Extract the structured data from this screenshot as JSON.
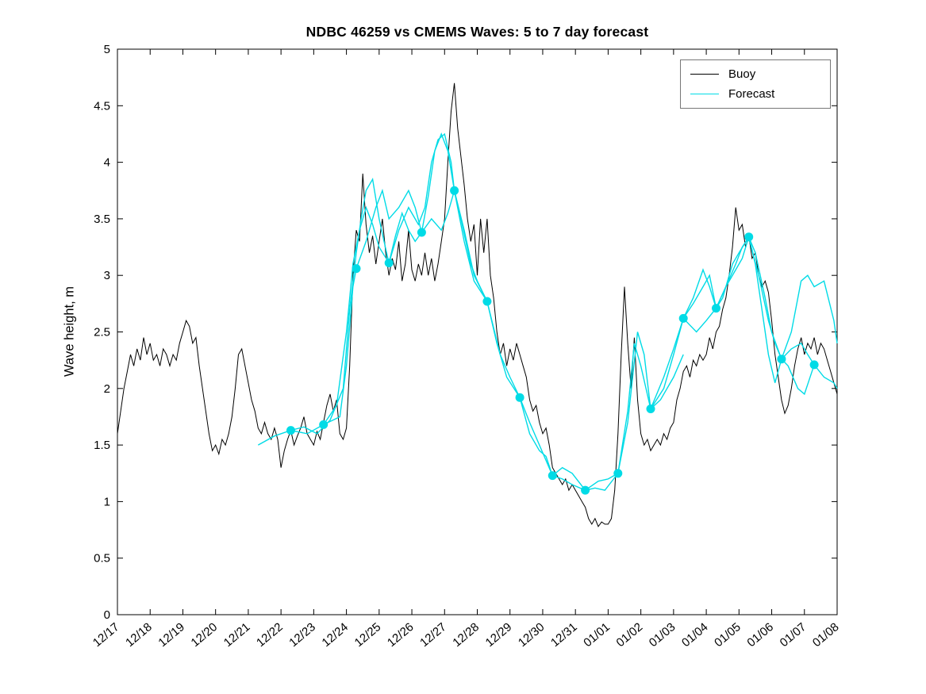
{
  "figure": {
    "background": "#ffffff"
  },
  "chart_data": {
    "type": "line",
    "title": "NDBC 46259 vs CMEMS Waves: 5 to 7 day forecast",
    "xlabel": "",
    "ylabel": "Wave height, m",
    "xlim": [
      0,
      22
    ],
    "ylim": [
      0,
      5
    ],
    "grid": false,
    "x_ticks": [
      "12/17",
      "12/18",
      "12/19",
      "12/20",
      "12/21",
      "12/22",
      "12/23",
      "12/24",
      "12/25",
      "12/26",
      "12/27",
      "12/28",
      "12/29",
      "12/30",
      "12/31",
      "01/01",
      "01/02",
      "01/03",
      "01/04",
      "01/05",
      "01/06",
      "01/07",
      "01/08"
    ],
    "y_ticks": [
      0,
      0.5,
      1,
      1.5,
      2,
      2.5,
      3,
      3.5,
      4,
      4.5,
      5
    ],
    "legend": {
      "position": "top-right",
      "entries": [
        "Buoy",
        "Forecast"
      ]
    },
    "series": [
      {
        "name": "Buoy",
        "color": "#000000",
        "style": "noisy-line",
        "x_start": 0,
        "dx": 0.1,
        "values": [
          1.6,
          1.8,
          2.0,
          2.15,
          2.3,
          2.2,
          2.35,
          2.25,
          2.45,
          2.3,
          2.4,
          2.25,
          2.3,
          2.2,
          2.35,
          2.3,
          2.2,
          2.3,
          2.25,
          2.4,
          2.5,
          2.6,
          2.55,
          2.4,
          2.45,
          2.2,
          2.0,
          1.8,
          1.6,
          1.45,
          1.5,
          1.42,
          1.55,
          1.5,
          1.6,
          1.75,
          2.0,
          2.3,
          2.35,
          2.2,
          2.05,
          1.9,
          1.8,
          1.65,
          1.6,
          1.7,
          1.6,
          1.55,
          1.65,
          1.55,
          1.3,
          1.45,
          1.55,
          1.63,
          1.5,
          1.58,
          1.65,
          1.75,
          1.6,
          1.55,
          1.5,
          1.62,
          1.55,
          1.7,
          1.85,
          1.95,
          1.8,
          1.9,
          1.6,
          1.55,
          1.65,
          2.2,
          3.0,
          3.4,
          3.3,
          3.9,
          3.45,
          3.2,
          3.35,
          3.1,
          3.3,
          3.5,
          3.2,
          3.0,
          3.15,
          3.05,
          3.3,
          2.95,
          3.1,
          3.4,
          3.05,
          2.95,
          3.1,
          3.0,
          3.2,
          3.0,
          3.15,
          2.95,
          3.1,
          3.3,
          3.5,
          4.0,
          4.45,
          4.7,
          4.3,
          4.05,
          3.8,
          3.5,
          3.3,
          3.45,
          3.0,
          3.5,
          3.2,
          3.5,
          3.0,
          2.8,
          2.5,
          2.3,
          2.4,
          2.2,
          2.35,
          2.25,
          2.4,
          2.3,
          2.2,
          2.1,
          1.9,
          1.8,
          1.85,
          1.7,
          1.6,
          1.65,
          1.5,
          1.3,
          1.25,
          1.2,
          1.15,
          1.2,
          1.1,
          1.15,
          1.1,
          1.05,
          1.0,
          0.95,
          0.85,
          0.8,
          0.85,
          0.78,
          0.82,
          0.8,
          0.8,
          0.85,
          1.1,
          1.6,
          2.3,
          2.9,
          2.4,
          2.0,
          2.45,
          1.9,
          1.6,
          1.5,
          1.55,
          1.45,
          1.5,
          1.55,
          1.5,
          1.6,
          1.55,
          1.65,
          1.7,
          1.9,
          2.0,
          2.15,
          2.2,
          2.1,
          2.25,
          2.2,
          2.3,
          2.25,
          2.3,
          2.45,
          2.35,
          2.5,
          2.55,
          2.7,
          2.8,
          3.0,
          3.25,
          3.6,
          3.4,
          3.45,
          3.25,
          3.35,
          3.15,
          3.2,
          3.0,
          2.9,
          2.95,
          2.85,
          2.6,
          2.3,
          2.1,
          1.9,
          1.78,
          1.85,
          2.0,
          2.2,
          2.35,
          2.45,
          2.3,
          2.4,
          2.35,
          2.45,
          2.3,
          2.4,
          2.35,
          2.25,
          2.15,
          2.05,
          1.95
        ]
      },
      {
        "name": "Forecast",
        "color": "#00dbe6",
        "style": "multi-segment-line-with-markers",
        "segments": [
          [
            [
              4.3,
              1.5
            ],
            [
              4.8,
              1.58
            ],
            [
              5.3,
              1.63
            ],
            [
              5.8,
              1.6
            ],
            [
              6.3,
              1.68
            ],
            [
              6.8,
              1.75
            ],
            [
              7.0,
              2.2
            ],
            [
              7.2,
              2.9
            ],
            [
              7.3,
              3.06
            ]
          ],
          [
            [
              5.3,
              1.63
            ],
            [
              5.7,
              1.66
            ],
            [
              6.1,
              1.6
            ],
            [
              6.5,
              1.72
            ],
            [
              6.9,
              2.0
            ],
            [
              7.1,
              2.7
            ],
            [
              7.3,
              3.2
            ],
            [
              7.45,
              3.5
            ],
            [
              7.6,
              3.75
            ],
            [
              7.8,
              3.85
            ],
            [
              8.0,
              3.5
            ],
            [
              8.15,
              3.3
            ],
            [
              8.3,
              3.11
            ]
          ],
          [
            [
              6.3,
              1.68
            ],
            [
              6.7,
              1.85
            ],
            [
              7.0,
              2.5
            ],
            [
              7.2,
              3.1
            ],
            [
              7.4,
              3.4
            ],
            [
              7.6,
              3.6
            ],
            [
              7.8,
              3.45
            ],
            [
              8.0,
              3.25
            ],
            [
              8.3,
              3.11
            ],
            [
              8.5,
              3.35
            ],
            [
              8.7,
              3.55
            ],
            [
              8.9,
              3.4
            ],
            [
              9.1,
              3.3
            ],
            [
              9.3,
              3.38
            ]
          ],
          [
            [
              7.3,
              3.06
            ],
            [
              7.6,
              3.3
            ],
            [
              7.9,
              3.6
            ],
            [
              8.1,
              3.75
            ],
            [
              8.3,
              3.5
            ],
            [
              8.6,
              3.6
            ],
            [
              8.9,
              3.75
            ],
            [
              9.1,
              3.6
            ],
            [
              9.3,
              3.38
            ],
            [
              9.6,
              3.5
            ],
            [
              9.9,
              3.4
            ],
            [
              10.1,
              3.55
            ],
            [
              10.3,
              3.75
            ]
          ],
          [
            [
              8.3,
              3.11
            ],
            [
              8.6,
              3.4
            ],
            [
              8.9,
              3.6
            ],
            [
              9.2,
              3.45
            ],
            [
              9.4,
              3.6
            ],
            [
              9.6,
              4.0
            ],
            [
              9.8,
              4.2
            ],
            [
              10.0,
              4.25
            ],
            [
              10.2,
              4.0
            ],
            [
              10.3,
              3.75
            ],
            [
              10.5,
              3.5
            ],
            [
              10.8,
              3.1
            ],
            [
              11.0,
              2.95
            ],
            [
              11.3,
              2.77
            ]
          ],
          [
            [
              9.3,
              3.38
            ],
            [
              9.5,
              3.7
            ],
            [
              9.7,
              4.1
            ],
            [
              9.9,
              4.25
            ],
            [
              10.1,
              4.1
            ],
            [
              10.3,
              3.75
            ],
            [
              10.6,
              3.4
            ],
            [
              10.9,
              3.0
            ],
            [
              11.3,
              2.77
            ],
            [
              11.6,
              2.4
            ],
            [
              11.9,
              2.1
            ],
            [
              12.3,
              1.92
            ]
          ],
          [
            [
              10.3,
              3.75
            ],
            [
              10.6,
              3.3
            ],
            [
              10.9,
              2.95
            ],
            [
              11.3,
              2.77
            ],
            [
              11.7,
              2.3
            ],
            [
              12.0,
              2.1
            ],
            [
              12.3,
              1.92
            ],
            [
              12.6,
              1.6
            ],
            [
              12.9,
              1.45
            ],
            [
              13.1,
              1.4
            ],
            [
              13.3,
              1.23
            ],
            [
              13.6,
              1.3
            ],
            [
              13.9,
              1.25
            ],
            [
              14.3,
              1.1
            ]
          ],
          [
            [
              12.3,
              1.92
            ],
            [
              12.6,
              1.7
            ],
            [
              12.9,
              1.5
            ],
            [
              13.3,
              1.23
            ],
            [
              13.6,
              1.2
            ],
            [
              13.9,
              1.15
            ],
            [
              14.3,
              1.1
            ],
            [
              14.6,
              1.12
            ],
            [
              14.9,
              1.1
            ],
            [
              15.3,
              1.25
            ]
          ],
          [
            [
              14.3,
              1.1
            ],
            [
              14.7,
              1.18
            ],
            [
              15.0,
              1.2
            ],
            [
              15.3,
              1.25
            ],
            [
              15.6,
              1.8
            ],
            [
              15.8,
              2.4
            ],
            [
              16.0,
              2.2
            ],
            [
              16.3,
              1.82
            ],
            [
              16.6,
              1.9
            ],
            [
              17.0,
              2.1
            ],
            [
              17.3,
              2.3
            ]
          ],
          [
            [
              15.3,
              1.25
            ],
            [
              15.6,
              1.7
            ],
            [
              15.9,
              2.5
            ],
            [
              16.1,
              2.3
            ],
            [
              16.3,
              1.82
            ],
            [
              16.7,
              2.0
            ],
            [
              17.0,
              2.3
            ],
            [
              17.3,
              2.62
            ],
            [
              17.6,
              2.8
            ],
            [
              17.9,
              3.05
            ],
            [
              18.1,
              2.9
            ],
            [
              18.3,
              2.71
            ]
          ],
          [
            [
              16.3,
              1.82
            ],
            [
              16.7,
              2.1
            ],
            [
              17.0,
              2.35
            ],
            [
              17.3,
              2.62
            ],
            [
              17.7,
              2.5
            ],
            [
              18.0,
              2.6
            ],
            [
              18.3,
              2.71
            ],
            [
              18.6,
              2.9
            ],
            [
              18.9,
              3.1
            ],
            [
              19.1,
              3.25
            ],
            [
              19.3,
              3.34
            ]
          ],
          [
            [
              17.3,
              2.62
            ],
            [
              17.6,
              2.75
            ],
            [
              17.9,
              2.9
            ],
            [
              18.1,
              3.0
            ],
            [
              18.3,
              2.71
            ],
            [
              18.5,
              2.8
            ],
            [
              18.8,
              3.1
            ],
            [
              19.0,
              3.2
            ],
            [
              19.3,
              3.34
            ],
            [
              19.5,
              3.2
            ],
            [
              19.8,
              2.8
            ],
            [
              20.0,
              2.5
            ],
            [
              20.3,
              2.26
            ]
          ],
          [
            [
              18.3,
              2.71
            ],
            [
              18.6,
              2.9
            ],
            [
              18.9,
              3.05
            ],
            [
              19.1,
              3.15
            ],
            [
              19.3,
              3.34
            ],
            [
              19.6,
              3.0
            ],
            [
              19.9,
              2.6
            ],
            [
              20.1,
              2.4
            ],
            [
              20.3,
              2.26
            ],
            [
              20.6,
              2.35
            ],
            [
              20.9,
              2.4
            ],
            [
              21.1,
              2.3
            ],
            [
              21.3,
              2.21
            ]
          ],
          [
            [
              19.3,
              3.34
            ],
            [
              19.5,
              3.1
            ],
            [
              19.7,
              2.7
            ],
            [
              19.9,
              2.3
            ],
            [
              20.1,
              2.05
            ],
            [
              20.3,
              2.26
            ],
            [
              20.5,
              2.2
            ],
            [
              20.8,
              2.0
            ],
            [
              21.0,
              1.95
            ],
            [
              21.3,
              2.21
            ],
            [
              21.6,
              2.1
            ],
            [
              21.9,
              2.05
            ],
            [
              22.0,
              2.0
            ]
          ],
          [
            [
              20.3,
              2.26
            ],
            [
              20.6,
              2.5
            ],
            [
              20.9,
              2.95
            ],
            [
              21.1,
              3.0
            ],
            [
              21.3,
              2.9
            ],
            [
              21.6,
              2.95
            ],
            [
              21.9,
              2.6
            ],
            [
              22.0,
              2.4
            ]
          ]
        ],
        "markers": {
          "x": [
            5.3,
            6.3,
            7.3,
            8.3,
            9.3,
            10.3,
            11.3,
            12.3,
            13.3,
            14.3,
            15.3,
            16.3,
            17.3,
            18.3,
            19.3,
            20.3,
            21.3
          ],
          "y": [
            1.63,
            1.68,
            3.06,
            3.11,
            3.38,
            3.75,
            2.77,
            1.92,
            1.23,
            1.1,
            1.25,
            1.82,
            2.62,
            2.71,
            3.34,
            2.26,
            2.21
          ]
        }
      }
    ]
  }
}
